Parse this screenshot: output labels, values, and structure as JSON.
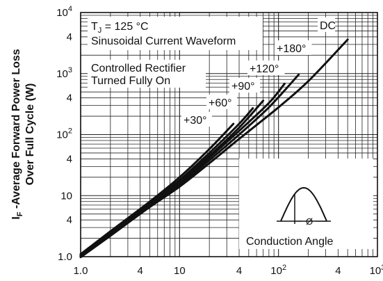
{
  "chart_data": {
    "type": "line",
    "x_scale": "log",
    "y_scale": "log",
    "xlim": [
      1,
      1000
    ],
    "ylim": [
      1,
      10000
    ],
    "grid": true,
    "ylabel_line1": "I",
    "ylabel_sub": "F",
    "ylabel_line1_rest": " -Average Forward Power Loss",
    "ylabel_line2": "Over Full Cycle (W)",
    "x_ticks": [
      {
        "value": 1,
        "label": "1.0",
        "sup": ""
      },
      {
        "value": 4,
        "label": "4",
        "sup": ""
      },
      {
        "value": 10,
        "label": "10",
        "sup": ""
      },
      {
        "value": 40,
        "label": "4",
        "sup": ""
      },
      {
        "value": 100,
        "label": "10",
        "sup": "2"
      },
      {
        "value": 400,
        "label": "4",
        "sup": ""
      },
      {
        "value": 1000,
        "label": "10",
        "sup": "3"
      }
    ],
    "y_ticks": [
      {
        "value": 1,
        "label": "1.0",
        "sup": ""
      },
      {
        "value": 4,
        "label": "4",
        "sup": ""
      },
      {
        "value": 10,
        "label": "10",
        "sup": ""
      },
      {
        "value": 40,
        "label": "4",
        "sup": ""
      },
      {
        "value": 100,
        "label": "10",
        "sup": "2"
      },
      {
        "value": 400,
        "label": "4",
        "sup": ""
      },
      {
        "value": 1000,
        "label": "10",
        "sup": "3"
      },
      {
        "value": 4000,
        "label": "4",
        "sup": ""
      },
      {
        "value": 10000,
        "label": "10",
        "sup": "4"
      }
    ],
    "series": [
      {
        "name": "+30°",
        "points": [
          [
            1,
            1.1
          ],
          [
            2,
            2.6
          ],
          [
            5,
            8
          ],
          [
            10,
            20
          ],
          [
            20,
            58
          ],
          [
            35,
            150
          ]
        ]
      },
      {
        "name": "+60°",
        "points": [
          [
            1,
            1.08
          ],
          [
            2,
            2.5
          ],
          [
            5,
            7.6
          ],
          [
            10,
            18
          ],
          [
            20,
            50
          ],
          [
            40,
            150
          ],
          [
            55,
            270
          ]
        ]
      },
      {
        "name": "+90°",
        "points": [
          [
            1,
            1.05
          ],
          [
            2,
            2.4
          ],
          [
            5,
            7.3
          ],
          [
            10,
            17
          ],
          [
            20,
            45
          ],
          [
            40,
            130
          ],
          [
            70,
            360
          ]
        ]
      },
      {
        "name": "+120°",
        "points": [
          [
            1,
            1.02
          ],
          [
            2,
            2.35
          ],
          [
            5,
            7
          ],
          [
            10,
            16
          ],
          [
            20,
            42
          ],
          [
            40,
            115
          ],
          [
            80,
            330
          ],
          [
            115,
            680
          ]
        ]
      },
      {
        "name": "+180°",
        "points": [
          [
            1,
            1.0
          ],
          [
            2,
            2.3
          ],
          [
            5,
            6.8
          ],
          [
            10,
            15
          ],
          [
            20,
            38
          ],
          [
            40,
            100
          ],
          [
            80,
            280
          ],
          [
            160,
            960
          ]
        ]
      },
      {
        "name": "DC",
        "points": [
          [
            1,
            0.98
          ],
          [
            2,
            2.2
          ],
          [
            5,
            6.5
          ],
          [
            10,
            14
          ],
          [
            20,
            34
          ],
          [
            40,
            85
          ],
          [
            100,
            280
          ],
          [
            200,
            750
          ],
          [
            500,
            3600
          ]
        ]
      }
    ],
    "annotations": {
      "tj_prefix": "T",
      "tj_sub": "J",
      "tj_rest": " = 125 °C",
      "waveform": "Sinusoidal Current Waveform",
      "rectifier_line1": "Controlled Rectifier",
      "rectifier_line2": "Turned Fully On",
      "conduction_angle": "Conduction Angle",
      "phi": "Ø"
    },
    "colors": {
      "line": "#111111",
      "grid": "#222222",
      "background": "#ffffff"
    }
  }
}
